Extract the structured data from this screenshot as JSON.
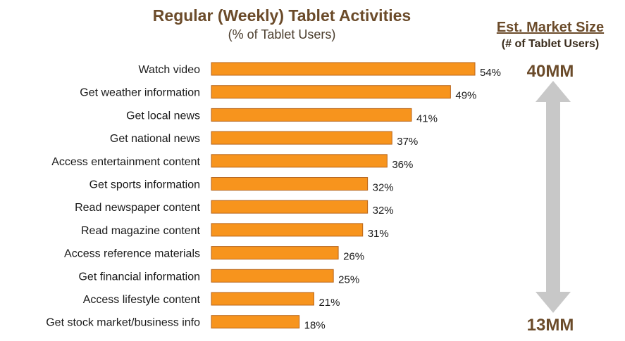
{
  "chart_data": {
    "type": "bar",
    "orientation": "horizontal",
    "title": "Regular (Weekly) Tablet Activities",
    "subtitle": "(% of Tablet Users)",
    "categories": [
      "Watch video",
      "Get weather information",
      "Get local news",
      "Get national news",
      "Access entertainment content",
      "Get sports information",
      "Read newspaper content",
      "Read magazine content",
      "Access reference materials",
      "Get financial information",
      "Access lifestyle content",
      "Get stock market/business info"
    ],
    "values": [
      54,
      49,
      41,
      37,
      36,
      32,
      32,
      31,
      26,
      25,
      21,
      18
    ],
    "value_suffix": "%",
    "xlim": [
      0,
      54
    ],
    "grid": false,
    "legend": "none",
    "colors": {
      "bar": "#f7941d",
      "bar_edge": "#b8651a"
    }
  },
  "market": {
    "title": "Est. Market Size",
    "subtitle": "(# of Tablet Users)",
    "top_value": "40MM",
    "bottom_value": "13MM",
    "arrow_color": "#c8c8c8"
  }
}
